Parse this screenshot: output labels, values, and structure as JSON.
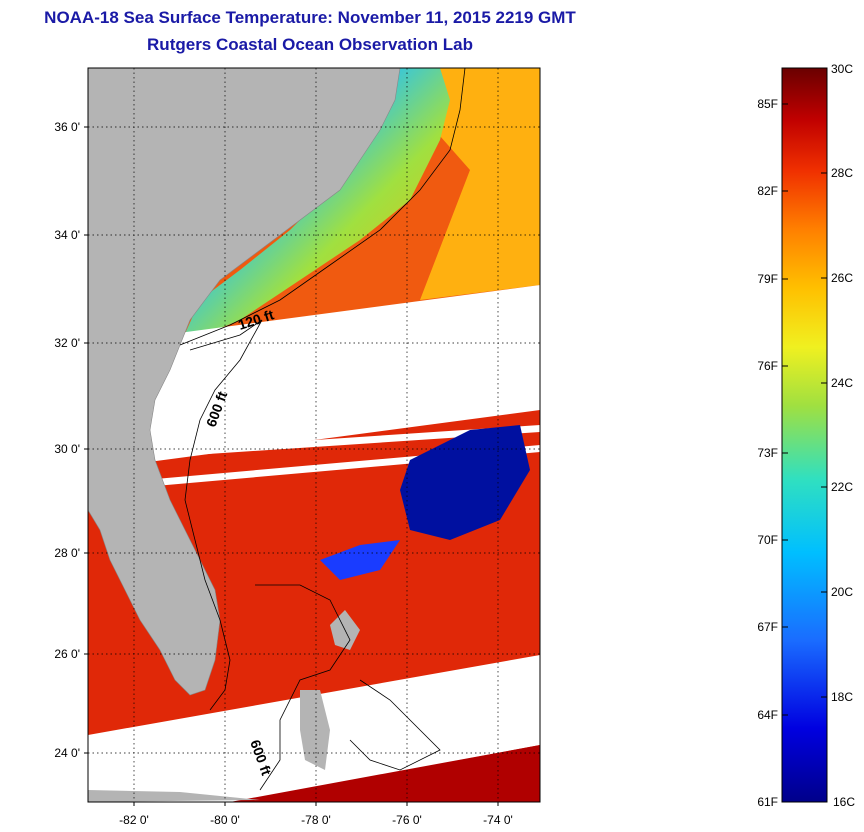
{
  "title": {
    "line1": "NOAA-18 Sea Surface Temperature:  November 11, 2015 2219 GMT",
    "line2": "Rutgers Coastal Ocean Observation Lab"
  },
  "map": {
    "lat_labels": [
      "36 0'",
      "34 0'",
      "32 0'",
      "30 0'",
      "28 0'",
      "26 0'",
      "24 0'"
    ],
    "lon_labels": [
      "-82 0'",
      "-80 0'",
      "-78 0'",
      "-76 0'",
      "-74 0'"
    ],
    "depth_labels": [
      "120 ft",
      "600 ft",
      "600 ft"
    ],
    "colors": {
      "land": "#b4b4b4",
      "no_data": "#ffffff",
      "contour": "#000000"
    }
  },
  "colorbar": {
    "fahrenheit": [
      "85F",
      "82F",
      "79F",
      "76F",
      "73F",
      "70F",
      "67F",
      "64F",
      "61F"
    ],
    "celsius": [
      "30C",
      "28C",
      "26C",
      "24C",
      "22C",
      "20C",
      "18C",
      "16C"
    ],
    "range_c": [
      16,
      30
    ],
    "range_f": [
      61,
      86
    ]
  }
}
